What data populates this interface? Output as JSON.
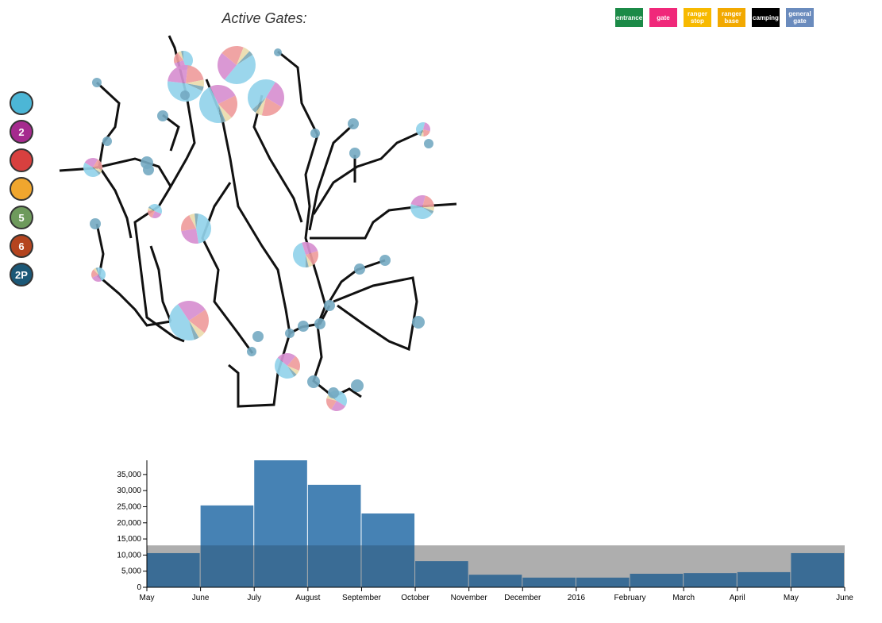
{
  "title": "Active Gates:",
  "legend": [
    {
      "label": "entrance",
      "color": "#1b8a47"
    },
    {
      "label": "gate",
      "color": "#f0287a"
    },
    {
      "label": "ranger stop",
      "color": "#f7b900"
    },
    {
      "label": "ranger base",
      "color": "#f2a900"
    },
    {
      "label": "camping",
      "color": "#000000"
    },
    {
      "label": "general gate",
      "color": "#6a8bbd"
    }
  ],
  "vehicle_icons": [
    {
      "color": "#4cb6d6"
    },
    {
      "color": "#a52a8e",
      "label": "2"
    },
    {
      "color": "#d8403f"
    },
    {
      "color": "#f0a62e"
    },
    {
      "color": "#6e9a5c",
      "label": "5"
    },
    {
      "color": "#b4441f",
      "label": "6"
    },
    {
      "color": "#1b5877",
      "label": "2P"
    }
  ],
  "chart_data": {
    "type": "histogram",
    "bins": [
      "May",
      "June",
      "July",
      "August",
      "September",
      "October",
      "November",
      "December",
      "2016",
      "February",
      "March",
      "April",
      "May",
      "June"
    ],
    "values": [
      10600,
      25400,
      39400,
      31800,
      22900,
      8100,
      3900,
      3000,
      3000,
      4200,
      4400,
      4700,
      10600
    ],
    "color": "#4682b4",
    "band": 13000,
    "band_color": "#d3d3d3",
    "ylim": [
      0,
      39400
    ],
    "yticks": [
      0,
      {
        "value": 5000,
        "label": "5,000"
      },
      {
        "value": 10000,
        "label": "10,000"
      },
      {
        "value": 15000,
        "label": "15,000"
      },
      {
        "value": 20000,
        "label": "20,000"
      },
      {
        "value": 25000,
        "label": "25,000"
      },
      {
        "value": 30000,
        "label": "30,000"
      },
      {
        "value": 35000,
        "label": "35,000"
      }
    ]
  }
}
